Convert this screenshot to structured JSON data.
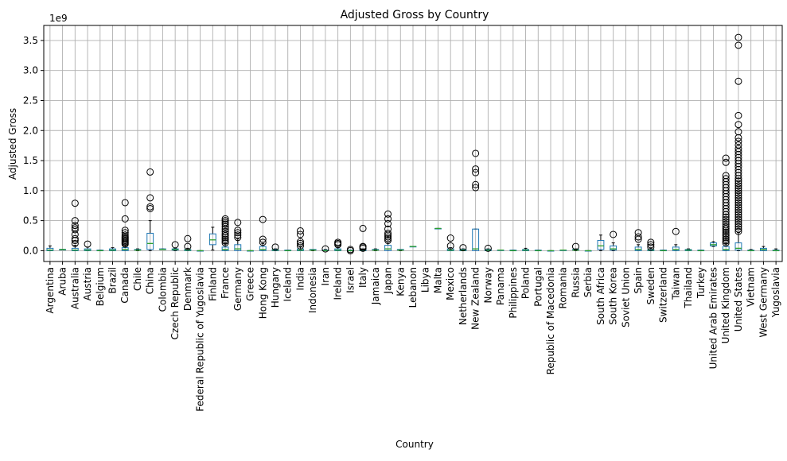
{
  "chart_data": {
    "type": "box",
    "title": "Adjusted Gross by Country",
    "xlabel": "Country",
    "ylabel": "Adjusted Gross",
    "y_scale_label": "1e9",
    "y_unit_multiplier": 1000000000,
    "ylim": [
      -0.18,
      3.75
    ],
    "yticks": [
      0.0,
      0.5,
      1.0,
      1.5,
      2.0,
      2.5,
      3.0,
      3.5
    ],
    "ytick_labels": [
      "0.0",
      "0.5",
      "1.0",
      "1.5",
      "2.0",
      "2.5",
      "3.0",
      "3.5"
    ],
    "grid": true,
    "colors": {
      "box": "#1f77b4",
      "median": "#2ca02c",
      "whisker": "#000000",
      "outlier": "#000000",
      "grid": "#b0b0b0"
    },
    "categories": [
      "Argentina",
      "Aruba",
      "Australia",
      "Austria",
      "Belgium",
      "Brazil",
      "Canada",
      "Chile",
      "China",
      "Colombia",
      "Czech Republic",
      "Denmark",
      "Federal Republic of Yugoslavia",
      "Finland",
      "France",
      "Germany",
      "Greece",
      "Hong Kong",
      "Hungary",
      "Iceland",
      "India",
      "Indonesia",
      "Iran",
      "Ireland",
      "Israel",
      "Italy",
      "Jamaica",
      "Japan",
      "Kenya",
      "Lebanon",
      "Libya",
      "Malta",
      "Mexico",
      "Netherlands",
      "New Zealand",
      "Norway",
      "Panama",
      "Philippines",
      "Poland",
      "Portugal",
      "Republic of Macedonia",
      "Romania",
      "Russia",
      "Serbia",
      "South Africa",
      "South Korea",
      "Soviet Union",
      "Spain",
      "Sweden",
      "Switzerland",
      "Taiwan",
      "Thailand",
      "Turkey",
      "United Arab Emirates",
      "United Kingdom",
      "United States",
      "Vietnam",
      "West Germany",
      "Yugoslavia"
    ],
    "boxes": [
      {
        "q1": 0.0,
        "med": 0.01,
        "q3": 0.04,
        "wlo": 0.0,
        "whi": 0.08,
        "out": []
      },
      {
        "q1": 0.02,
        "med": 0.02,
        "q3": 0.02,
        "wlo": 0.02,
        "whi": 0.02,
        "out": []
      },
      {
        "q1": 0.0,
        "med": 0.01,
        "q3": 0.04,
        "wlo": 0.0,
        "whi": 0.09,
        "out": [
          0.12,
          0.17,
          0.2,
          0.27,
          0.35,
          0.38,
          0.42,
          0.5,
          0.79
        ]
      },
      {
        "q1": 0.0,
        "med": 0.01,
        "q3": 0.03,
        "wlo": 0.0,
        "whi": 0.06,
        "out": [
          0.11
        ]
      },
      {
        "q1": 0.0,
        "med": 0.0,
        "q3": 0.01,
        "wlo": 0.0,
        "whi": 0.01,
        "out": []
      },
      {
        "q1": 0.0,
        "med": 0.01,
        "q3": 0.03,
        "wlo": 0.0,
        "whi": 0.05,
        "out": []
      },
      {
        "q1": 0.0,
        "med": 0.02,
        "q3": 0.05,
        "wlo": 0.0,
        "whi": 0.1,
        "out": [
          0.11,
          0.13,
          0.15,
          0.17,
          0.19,
          0.21,
          0.23,
          0.26,
          0.3,
          0.34,
          0.53,
          0.8
        ]
      },
      {
        "q1": 0.01,
        "med": 0.01,
        "q3": 0.02,
        "wlo": 0.0,
        "whi": 0.03,
        "out": []
      },
      {
        "q1": 0.02,
        "med": 0.12,
        "q3": 0.29,
        "wlo": 0.0,
        "whi": 0.5,
        "out": [
          0.7,
          0.73,
          0.88,
          1.31
        ]
      },
      {
        "q1": 0.02,
        "med": 0.02,
        "q3": 0.03,
        "wlo": 0.02,
        "whi": 0.03,
        "out": []
      },
      {
        "q1": 0.01,
        "med": 0.02,
        "q3": 0.03,
        "wlo": 0.0,
        "whi": 0.04,
        "out": [
          0.1
        ]
      },
      {
        "q1": 0.0,
        "med": 0.01,
        "q3": 0.02,
        "wlo": 0.0,
        "whi": 0.04,
        "out": [
          0.07,
          0.2
        ]
      },
      {
        "q1": 0.0,
        "med": 0.0,
        "q3": 0.0,
        "wlo": 0.0,
        "whi": 0.0,
        "out": []
      },
      {
        "q1": 0.1,
        "med": 0.18,
        "q3": 0.28,
        "wlo": 0.01,
        "whi": 0.39,
        "out": []
      },
      {
        "q1": 0.0,
        "med": 0.02,
        "q3": 0.06,
        "wlo": 0.0,
        "whi": 0.12,
        "out": [
          0.13,
          0.16,
          0.19,
          0.22,
          0.25,
          0.28,
          0.32,
          0.36,
          0.4,
          0.44,
          0.47,
          0.5,
          0.53
        ]
      },
      {
        "q1": 0.0,
        "med": 0.03,
        "q3": 0.1,
        "wlo": 0.0,
        "whi": 0.2,
        "out": [
          0.22,
          0.26,
          0.3,
          0.34,
          0.47
        ]
      },
      {
        "q1": 0.0,
        "med": 0.0,
        "q3": 0.0,
        "wlo": 0.0,
        "whi": 0.0,
        "out": []
      },
      {
        "q1": 0.0,
        "med": 0.02,
        "q3": 0.07,
        "wlo": 0.0,
        "whi": 0.12,
        "out": [
          0.14,
          0.19,
          0.52
        ]
      },
      {
        "q1": 0.0,
        "med": 0.01,
        "q3": 0.02,
        "wlo": 0.0,
        "whi": 0.03,
        "out": [
          0.06
        ]
      },
      {
        "q1": 0.0,
        "med": 0.0,
        "q3": 0.01,
        "wlo": 0.0,
        "whi": 0.01,
        "out": []
      },
      {
        "q1": 0.0,
        "med": 0.01,
        "q3": 0.03,
        "wlo": 0.0,
        "whi": 0.06,
        "out": [
          0.08,
          0.12,
          0.15,
          0.27,
          0.33
        ]
      },
      {
        "q1": 0.01,
        "med": 0.01,
        "q3": 0.02,
        "wlo": 0.0,
        "whi": 0.02,
        "out": []
      },
      {
        "q1": 0.0,
        "med": 0.0,
        "q3": 0.01,
        "wlo": 0.0,
        "whi": 0.02,
        "out": [
          0.03
        ]
      },
      {
        "q1": 0.0,
        "med": 0.01,
        "q3": 0.03,
        "wlo": 0.0,
        "whi": 0.05,
        "out": [
          0.1,
          0.12,
          0.14
        ]
      },
      {
        "q1": 0.0,
        "med": 0.0,
        "q3": 0.01,
        "wlo": 0.0,
        "whi": 0.01,
        "out": [
          0.0,
          0.02
        ]
      },
      {
        "q1": 0.0,
        "med": 0.01,
        "q3": 0.02,
        "wlo": 0.0,
        "whi": 0.03,
        "out": [
          0.04,
          0.06,
          0.07,
          0.37
        ]
      },
      {
        "q1": 0.01,
        "med": 0.01,
        "q3": 0.02,
        "wlo": 0.0,
        "whi": 0.03,
        "out": []
      },
      {
        "q1": 0.0,
        "med": 0.03,
        "q3": 0.09,
        "wlo": 0.0,
        "whi": 0.15,
        "out": [
          0.17,
          0.2,
          0.23,
          0.26,
          0.29,
          0.36,
          0.45,
          0.53,
          0.61
        ]
      },
      {
        "q1": 0.01,
        "med": 0.01,
        "q3": 0.02,
        "wlo": 0.0,
        "whi": 0.02,
        "out": []
      },
      {
        "q1": 0.07,
        "med": 0.07,
        "q3": 0.07,
        "wlo": 0.07,
        "whi": 0.07,
        "out": []
      },
      null,
      {
        "q1": 0.37,
        "med": 0.37,
        "q3": 0.37,
        "wlo": 0.37,
        "whi": 0.37,
        "out": []
      },
      {
        "q1": 0.0,
        "med": 0.01,
        "q3": 0.03,
        "wlo": 0.0,
        "whi": 0.05,
        "out": [
          0.08,
          0.21
        ]
      },
      {
        "q1": 0.0,
        "med": 0.01,
        "q3": 0.02,
        "wlo": 0.0,
        "whi": 0.03,
        "out": [
          0.05
        ]
      },
      {
        "q1": 0.0,
        "med": 0.03,
        "q3": 0.36,
        "wlo": 0.0,
        "whi": 0.36,
        "out": [
          1.05,
          1.1,
          1.3,
          1.36,
          1.62
        ]
      },
      {
        "q1": 0.0,
        "med": 0.01,
        "q3": 0.02,
        "wlo": 0.0,
        "whi": 0.03,
        "out": [
          0.04
        ]
      },
      {
        "q1": 0.01,
        "med": 0.01,
        "q3": 0.01,
        "wlo": 0.01,
        "whi": 0.01,
        "out": []
      },
      {
        "q1": 0.0,
        "med": 0.0,
        "q3": 0.01,
        "wlo": 0.0,
        "whi": 0.01,
        "out": []
      },
      {
        "q1": 0.0,
        "med": 0.01,
        "q3": 0.02,
        "wlo": 0.0,
        "whi": 0.04,
        "out": []
      },
      {
        "q1": 0.0,
        "med": 0.0,
        "q3": 0.01,
        "wlo": 0.0,
        "whi": 0.01,
        "out": []
      },
      {
        "q1": 0.0,
        "med": 0.0,
        "q3": 0.0,
        "wlo": 0.0,
        "whi": 0.0,
        "out": []
      },
      {
        "q1": 0.01,
        "med": 0.01,
        "q3": 0.01,
        "wlo": 0.01,
        "whi": 0.01,
        "out": []
      },
      {
        "q1": 0.01,
        "med": 0.01,
        "q3": 0.02,
        "wlo": 0.0,
        "whi": 0.03,
        "out": [
          0.07
        ]
      },
      {
        "q1": 0.0,
        "med": 0.0,
        "q3": 0.0,
        "wlo": 0.0,
        "whi": 0.0,
        "out": []
      },
      {
        "q1": 0.02,
        "med": 0.08,
        "q3": 0.17,
        "wlo": 0.0,
        "whi": 0.26,
        "out": []
      },
      {
        "q1": 0.01,
        "med": 0.03,
        "q3": 0.08,
        "wlo": 0.0,
        "whi": 0.13,
        "out": [
          0.27
        ]
      },
      null,
      {
        "q1": 0.0,
        "med": 0.02,
        "q3": 0.06,
        "wlo": 0.0,
        "whi": 0.1,
        "out": [
          0.19,
          0.23,
          0.3
        ]
      },
      {
        "q1": 0.0,
        "med": 0.01,
        "q3": 0.02,
        "wlo": 0.0,
        "whi": 0.04,
        "out": [
          0.06,
          0.1,
          0.14
        ]
      },
      {
        "q1": 0.0,
        "med": 0.0,
        "q3": 0.01,
        "wlo": 0.0,
        "whi": 0.01,
        "out": []
      },
      {
        "q1": 0.0,
        "med": 0.02,
        "q3": 0.06,
        "wlo": 0.0,
        "whi": 0.1,
        "out": [
          0.32
        ]
      },
      {
        "q1": 0.0,
        "med": 0.01,
        "q3": 0.02,
        "wlo": 0.0,
        "whi": 0.03,
        "out": []
      },
      {
        "q1": 0.0,
        "med": 0.0,
        "q3": 0.01,
        "wlo": 0.0,
        "whi": 0.01,
        "out": []
      },
      {
        "q1": 0.08,
        "med": 0.1,
        "q3": 0.13,
        "wlo": 0.07,
        "whi": 0.15,
        "out": []
      },
      {
        "q1": 0.0,
        "med": 0.02,
        "q3": 0.07,
        "wlo": 0.0,
        "whi": 0.12,
        "out": [
          0.13,
          0.16,
          0.19,
          0.22,
          0.25,
          0.28,
          0.31,
          0.34,
          0.37,
          0.4,
          0.44,
          0.48,
          0.52,
          0.56,
          0.6,
          0.65,
          0.7,
          0.75,
          0.8,
          0.85,
          0.9,
          0.95,
          1.0,
          1.05,
          1.1,
          1.15,
          1.2,
          1.25,
          1.47,
          1.54
        ]
      },
      {
        "q1": 0.01,
        "med": 0.04,
        "q3": 0.13,
        "wlo": 0.0,
        "whi": 0.3,
        "out": [
          0.32,
          0.36,
          0.4,
          0.44,
          0.48,
          0.52,
          0.56,
          0.6,
          0.64,
          0.68,
          0.72,
          0.76,
          0.8,
          0.84,
          0.88,
          0.92,
          0.96,
          1.0,
          1.04,
          1.08,
          1.12,
          1.16,
          1.2,
          1.25,
          1.3,
          1.35,
          1.4,
          1.45,
          1.5,
          1.55,
          1.6,
          1.65,
          1.7,
          1.76,
          1.82,
          1.88,
          1.98,
          2.1,
          2.25,
          2.82,
          3.42,
          3.55
        ]
      },
      {
        "q1": 0.0,
        "med": 0.0,
        "q3": 0.01,
        "wlo": 0.0,
        "whi": 0.02,
        "out": []
      },
      {
        "q1": 0.0,
        "med": 0.02,
        "q3": 0.04,
        "wlo": 0.0,
        "whi": 0.07,
        "out": []
      },
      {
        "q1": 0.0,
        "med": 0.0,
        "q3": 0.01,
        "wlo": 0.0,
        "whi": 0.03,
        "out": []
      }
    ]
  }
}
